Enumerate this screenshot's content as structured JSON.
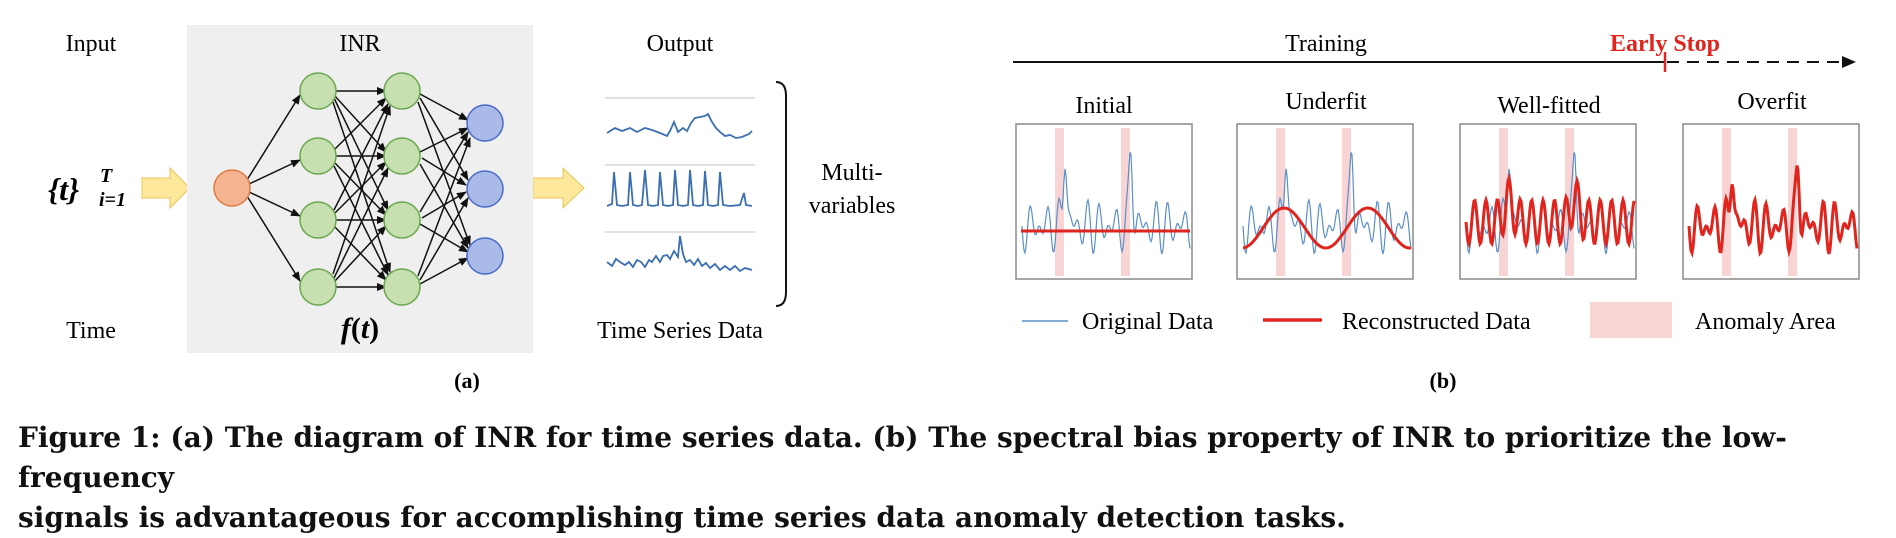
{
  "panel_a": {
    "input_label": "Input",
    "inr_label": "INR",
    "output_label": "Output",
    "time_label": "Time",
    "func_label": "f(t)",
    "ts_label": "Time Series Data",
    "multi_label_1": "Multi-",
    "multi_label_2": "variables",
    "input_set": "{t}",
    "input_sup": "T",
    "input_sub": "i=1",
    "sublabel": "(a)"
  },
  "panel_b": {
    "training_label": "Training",
    "early_stop_label": "Early Stop",
    "stages": [
      "Initial",
      "Underfit",
      "Well-fitted",
      "Overfit"
    ],
    "legend": [
      "Original Data",
      "Reconstructed Data",
      "Anomaly Area"
    ],
    "sublabel": "(b)"
  },
  "caption": {
    "line1": "Figure 1: (a) The diagram of INR for time series data. (b) The spectral bias property of INR to prioritize the low-frequency",
    "line2": "signals is advantageous for accomplishing time series data anomaly detection tasks."
  },
  "colors": {
    "original": "#5b8fc8",
    "reconstructed": "#e0251e",
    "anomaly": "#f8d4d4",
    "inr_bg": "#efefef",
    "node_green": "#c6e0b0",
    "node_blue": "#a9b9e8",
    "node_orange": "#f4b48f",
    "arrow_yellow": "#fde79a",
    "early_stop": "#e0251e"
  }
}
